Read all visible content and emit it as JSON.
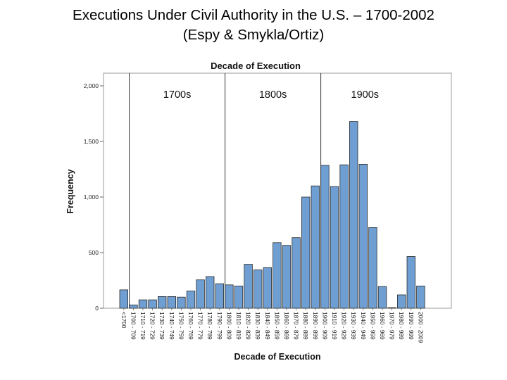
{
  "slide": {
    "title_line1": "Executions Under Civil Authority in the U.S. – 1700-2002",
    "title_line2": "(Espy & Smykla/Ortiz)"
  },
  "chart_data": {
    "type": "bar",
    "title": "Decade of Execution",
    "xlabel": "Decade of Execution",
    "ylabel": "Frequency",
    "ylim": [
      0,
      2100
    ],
    "yticks": [
      0,
      500,
      1000,
      1500,
      2000
    ],
    "ytick_labels": [
      "0",
      "500",
      "1,000",
      "1,500",
      "2,000"
    ],
    "grid": false,
    "bar_color": "#6f9fd2",
    "bar_outline": "#2b2b2b",
    "categories": [
      "<1700",
      "1700 - 709",
      "1710 - 719",
      "1720 - 729",
      "1730 - 739",
      "1740 - 749",
      "1750 - 759",
      "1760 - 769",
      "1770 - 779",
      "1780 - 789",
      "1790 - 799",
      "1800 - 809",
      "1810 - 819",
      "1820 - 829",
      "1830 - 839",
      "1840 - 849",
      "1850 - 859",
      "1860 - 869",
      "1870 - 879",
      "1880 - 889",
      "1890 - 899",
      "1900 - 909",
      "1910 - 919",
      "1920 - 929",
      "1930 - 939",
      "1940 - 949",
      "1950 - 959",
      "1960 - 969",
      "1970 - 979",
      "1980 - 989",
      "1990 - 999",
      "2000 - 2009"
    ],
    "values": [
      165,
      30,
      75,
      75,
      105,
      105,
      100,
      155,
      255,
      285,
      220,
      210,
      200,
      395,
      345,
      365,
      590,
      565,
      635,
      1000,
      1100,
      1285,
      1095,
      1290,
      1680,
      1295,
      725,
      195,
      5,
      120,
      465,
      200
    ],
    "century_markers": [
      {
        "label": "1700s",
        "start_index": 1
      },
      {
        "label": "1800s",
        "start_index": 11
      },
      {
        "label": "1900s",
        "start_index": 21
      }
    ]
  }
}
